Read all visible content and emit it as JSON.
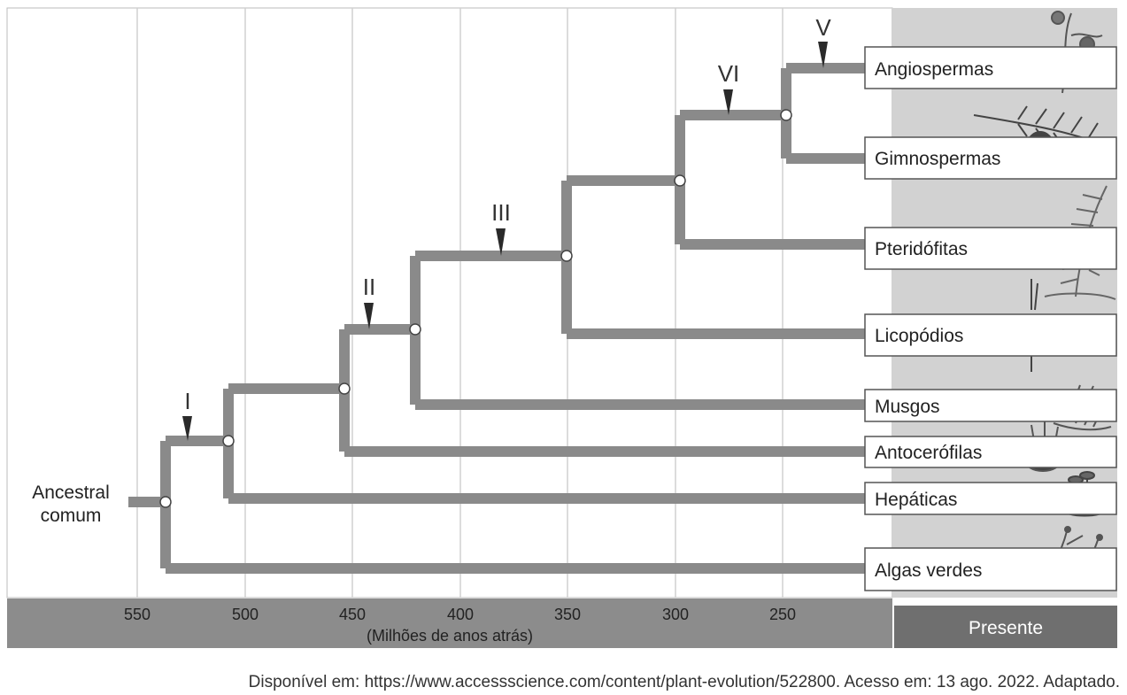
{
  "ancestor_label": [
    "Ancestral",
    "comum"
  ],
  "axis": {
    "ticks": [
      "550",
      "500",
      "450",
      "400",
      "350",
      "300",
      "250"
    ],
    "unit_label": "(Milhões de anos atrás)",
    "present_label": "Presente"
  },
  "taxa": [
    "Angiospermas",
    "Gimnospermas",
    "Pteridófitas",
    "Licopódios",
    "Musgos",
    "Antocerófilas",
    "Hepáticas",
    "Algas verdes"
  ],
  "markers": [
    "I",
    "II",
    "III",
    "VI",
    "V"
  ],
  "source": "Disponível em: https://www.accessscience.com/content/plant-evolution/522800. Acesso em: 13 ago. 2022. Adaptado.",
  "colors": {
    "branch": "#8a8a8a",
    "axis_band": "#8c8c8c",
    "present_band": "#6f6f6f",
    "right_panel": "#d2d2d2",
    "gridline": "#d0d0d0"
  },
  "icons": [
    "flower-plant-icon",
    "pine-branch-icon",
    "fern-icon",
    "clubmoss-icon",
    "moss-icon",
    "hornwort-icon",
    "liverwort-icon",
    "green-algae-icon"
  ]
}
